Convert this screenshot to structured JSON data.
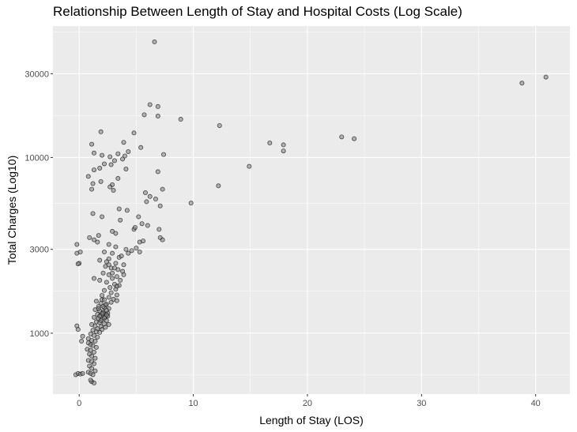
{
  "chart_data": {
    "type": "scatter",
    "title": "Relationship Between Length of Stay and Hospital Costs (Log Scale)",
    "xlabel": "Length of Stay (LOS)",
    "ylabel": "Total Charges (Log10)",
    "y_scale": "log10",
    "xlim": [
      -2.3,
      43.0
    ],
    "ylim": [
      450,
      56000
    ],
    "x_ticks": [
      0,
      10,
      20,
      30,
      40
    ],
    "x_tick_labels": [
      "0",
      "10",
      "20",
      "30",
      "40"
    ],
    "y_ticks": [
      1000,
      3000,
      10000,
      30000
    ],
    "y_tick_labels": [
      "1000",
      "3000",
      "10000",
      "30000"
    ],
    "grid": true,
    "legend": "none",
    "background": "#ebebeb",
    "grid_color": "#ffffff",
    "point_fill": "#808080",
    "point_edge": "#1a1a1a",
    "points": [
      [
        6.6,
        45500
      ],
      [
        38.8,
        26500
      ],
      [
        40.9,
        28700
      ],
      [
        6.2,
        20000
      ],
      [
        6.9,
        19500
      ],
      [
        5.7,
        17500
      ],
      [
        6.9,
        17200
      ],
      [
        8.9,
        16500
      ],
      [
        12.3,
        15200
      ],
      [
        1.9,
        14000
      ],
      [
        4.8,
        13800
      ],
      [
        3.9,
        12200
      ],
      [
        16.7,
        12100
      ],
      [
        17.9,
        11800
      ],
      [
        23.0,
        13100
      ],
      [
        24.1,
        12800
      ],
      [
        17.9,
        10900
      ],
      [
        1.1,
        11900
      ],
      [
        5.4,
        11400
      ],
      [
        4.3,
        10800
      ],
      [
        3.4,
        10500
      ],
      [
        4.0,
        10200
      ],
      [
        7.4,
        10400
      ],
      [
        2.0,
        10300
      ],
      [
        1.3,
        10600
      ],
      [
        2.7,
        10100
      ],
      [
        3.1,
        9600
      ],
      [
        2.2,
        9200
      ],
      [
        2.8,
        9100
      ],
      [
        3.8,
        9800
      ],
      [
        14.9,
        8900
      ],
      [
        1.3,
        8500
      ],
      [
        1.8,
        8700
      ],
      [
        4.1,
        8600
      ],
      [
        6.9,
        8300
      ],
      [
        0.8,
        7800
      ],
      [
        1.9,
        7300
      ],
      [
        1.2,
        7100
      ],
      [
        2.9,
        7000
      ],
      [
        3.4,
        7600
      ],
      [
        2.7,
        6800
      ],
      [
        1.1,
        6600
      ],
      [
        3.0,
        6500
      ],
      [
        12.2,
        6900
      ],
      [
        7.3,
        6600
      ],
      [
        5.8,
        6300
      ],
      [
        6.2,
        6000
      ],
      [
        6.7,
        5800
      ],
      [
        5.9,
        5600
      ],
      [
        9.8,
        5500
      ],
      [
        7.1,
        5300
      ],
      [
        3.5,
        5100
      ],
      [
        4.2,
        5000
      ],
      [
        1.2,
        4800
      ],
      [
        2.0,
        4600
      ],
      [
        3.6,
        4400
      ],
      [
        5.2,
        4600
      ],
      [
        5.5,
        4200
      ],
      [
        6.0,
        4100
      ],
      [
        4.8,
        3900
      ],
      [
        4.9,
        4000
      ],
      [
        7.0,
        3900
      ],
      [
        2.9,
        3800
      ],
      [
        1.7,
        3600
      ],
      [
        3.2,
        3700
      ],
      [
        7.1,
        3500
      ],
      [
        7.3,
        3400
      ],
      [
        5.3,
        3300
      ],
      [
        5.6,
        3350
      ],
      [
        0.9,
        3500
      ],
      [
        1.3,
        3400
      ],
      [
        1.6,
        3300
      ],
      [
        2.6,
        3200
      ],
      [
        3.2,
        3100
      ],
      [
        4.1,
        3000
      ],
      [
        4.6,
        2950
      ],
      [
        5.0,
        3050
      ],
      [
        2.2,
        2900
      ],
      [
        2.9,
        2850
      ],
      [
        3.5,
        2700
      ],
      [
        3.7,
        2750
      ],
      [
        4.3,
        2850
      ],
      [
        5.3,
        2900
      ],
      [
        -0.2,
        3200
      ],
      [
        -0.2,
        2850
      ],
      [
        0.1,
        2900
      ],
      [
        2.6,
        2650
      ],
      [
        1.8,
        2600
      ],
      [
        2.4,
        2550
      ],
      [
        3.2,
        2500
      ],
      [
        3.9,
        2450
      ],
      [
        0.0,
        2500
      ],
      [
        -0.1,
        2480
      ],
      [
        2.3,
        2400
      ],
      [
        2.8,
        2350
      ],
      [
        3.4,
        2300
      ],
      [
        2.1,
        2200
      ],
      [
        2.6,
        2150
      ],
      [
        3.3,
        2100
      ],
      [
        2.9,
        2050
      ],
      [
        3.8,
        2250
      ],
      [
        1.3,
        2050
      ],
      [
        1.8,
        2000
      ],
      [
        2.4,
        1950
      ],
      [
        3.1,
        1900
      ],
      [
        3.5,
        1870
      ],
      [
        2.7,
        1820
      ],
      [
        3.2,
        1780
      ],
      [
        2.2,
        1750
      ],
      [
        2.8,
        1700
      ],
      [
        3.3,
        1650
      ],
      [
        2.0,
        1640
      ],
      [
        2.6,
        1600
      ],
      [
        3.0,
        1560
      ],
      [
        1.5,
        1520
      ],
      [
        1.9,
        1480
      ],
      [
        2.4,
        1460
      ],
      [
        2.8,
        1500
      ],
      [
        3.3,
        1530
      ],
      [
        1.7,
        1420
      ],
      [
        2.2,
        1400
      ],
      [
        2.6,
        1380
      ],
      [
        1.4,
        1360
      ],
      [
        1.8,
        1340
      ],
      [
        2.1,
        1320
      ],
      [
        2.5,
        1300
      ],
      [
        1.6,
        1280
      ],
      [
        1.9,
        1260
      ],
      [
        2.3,
        1240
      ],
      [
        1.3,
        1230
      ],
      [
        1.7,
        1210
      ],
      [
        2.0,
        1200
      ],
      [
        2.4,
        1180
      ],
      [
        1.5,
        1160
      ],
      [
        1.8,
        1150
      ],
      [
        2.2,
        1130
      ],
      [
        1.1,
        1120
      ],
      [
        1.4,
        1100
      ],
      [
        1.9,
        1090
      ],
      [
        2.3,
        1080
      ],
      [
        1.6,
        1060
      ],
      [
        2.0,
        1050
      ],
      [
        1.2,
        1040
      ],
      [
        1.5,
        1020
      ],
      [
        1.8,
        1010
      ],
      [
        1.0,
        990
      ],
      [
        1.3,
        970
      ],
      [
        1.6,
        950
      ],
      [
        0.8,
        930
      ],
      [
        1.1,
        910
      ],
      [
        1.4,
        900
      ],
      [
        2.1,
        1300
      ],
      [
        2.3,
        1450
      ],
      [
        2.0,
        1550
      ],
      [
        2.5,
        1250
      ],
      [
        2.4,
        1350
      ],
      [
        2.2,
        1550
      ],
      [
        1.7,
        1380
      ],
      [
        1.9,
        1180
      ],
      [
        2.1,
        1420
      ],
      [
        2.6,
        1120
      ],
      [
        2.0,
        1290
      ],
      [
        1.8,
        1250
      ],
      [
        2.2,
        1220
      ],
      [
        2.4,
        1270
      ],
      [
        0.8,
        880
      ],
      [
        1.0,
        860
      ],
      [
        1.2,
        850
      ],
      [
        1.5,
        830
      ],
      [
        0.7,
        810
      ],
      [
        1.0,
        800
      ],
      [
        1.3,
        780
      ],
      [
        0.9,
        760
      ],
      [
        1.1,
        740
      ],
      [
        1.4,
        720
      ],
      [
        0.8,
        700
      ],
      [
        1.1,
        690
      ],
      [
        1.3,
        670
      ],
      [
        0.9,
        650
      ],
      [
        1.1,
        630
      ],
      [
        1.4,
        610
      ],
      [
        0.8,
        600
      ],
      [
        1.0,
        590
      ],
      [
        1.2,
        580
      ],
      [
        -0.3,
        580
      ],
      [
        -0.1,
        590
      ],
      [
        0.1,
        585
      ],
      [
        0.3,
        590
      ],
      [
        1.1,
        530
      ],
      [
        1.3,
        520
      ],
      [
        1.0,
        540
      ],
      [
        -0.2,
        1100
      ],
      [
        -0.1,
        1050
      ],
      [
        0.3,
        960
      ],
      [
        0.2,
        900
      ],
      [
        2.9,
        2200
      ],
      [
        3.1,
        2350
      ],
      [
        2.6,
        2450
      ],
      [
        3.3,
        1850
      ],
      [
        3.6,
        2000
      ],
      [
        3.9,
        2150
      ]
    ]
  }
}
